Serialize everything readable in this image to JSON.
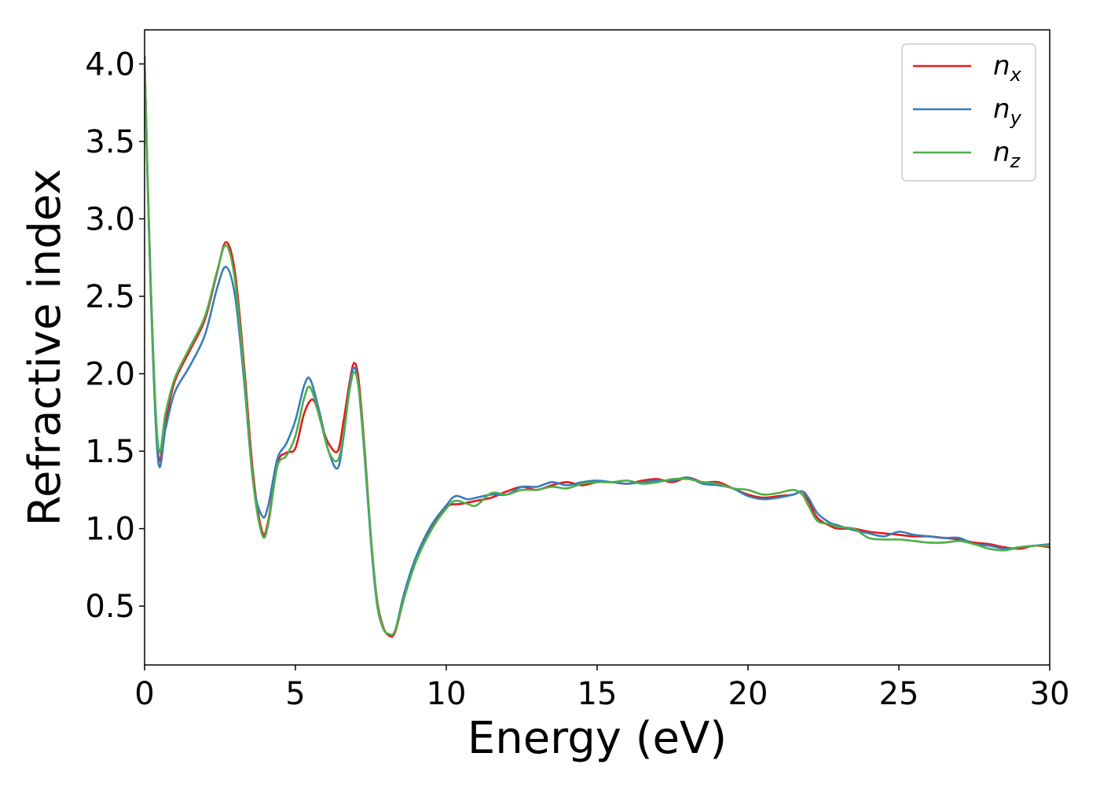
{
  "chart_data": {
    "type": "line",
    "xlabel": "Energy (eV)",
    "ylabel": "Refractive index",
    "xlim": [
      0,
      30
    ],
    "ylim": [
      0.12,
      4.22
    ],
    "xticks": [
      0,
      5,
      10,
      15,
      20,
      25,
      30
    ],
    "xtick_labels": [
      "0",
      "5",
      "10",
      "15",
      "20",
      "25",
      "30"
    ],
    "yticks": [
      0.5,
      1.0,
      1.5,
      2.0,
      2.5,
      3.0,
      3.5,
      4.0
    ],
    "ytick_labels": [
      "0.5",
      "1.0",
      "1.5",
      "2.0",
      "2.5",
      "3.0",
      "3.5",
      "4.0"
    ],
    "grid": false,
    "legend_position": "top-right",
    "series": [
      {
        "name": "n_x",
        "legend_main": "n",
        "legend_sub": "x",
        "color": "#e41a1c",
        "x": [
          0,
          0.2,
          0.45,
          0.7,
          1.0,
          1.5,
          2.0,
          2.4,
          2.7,
          3.0,
          3.3,
          3.6,
          3.9,
          4.1,
          4.4,
          4.7,
          5.0,
          5.3,
          5.6,
          5.9,
          6.1,
          6.4,
          6.6,
          6.8,
          6.95,
          7.1,
          7.3,
          7.5,
          7.7,
          7.9,
          8.1,
          8.3,
          8.6,
          9.0,
          9.5,
          10.0,
          10.5,
          11.0,
          11.5,
          12.0,
          12.5,
          13.0,
          13.5,
          14.0,
          14.5,
          15.0,
          15.5,
          16.0,
          16.5,
          17.0,
          17.5,
          18.0,
          18.5,
          19.0,
          19.5,
          20.0,
          20.5,
          21.0,
          21.5,
          21.8,
          22.0,
          22.3,
          22.7,
          23.0,
          23.5,
          24.0,
          24.5,
          25.0,
          25.5,
          26.0,
          26.5,
          27.0,
          27.5,
          28.0,
          28.5,
          29.0,
          29.5,
          30.0
        ],
        "y": [
          4.05,
          2.6,
          1.48,
          1.7,
          1.95,
          2.15,
          2.35,
          2.65,
          2.85,
          2.65,
          2.05,
          1.35,
          0.98,
          1.05,
          1.42,
          1.49,
          1.52,
          1.75,
          1.83,
          1.65,
          1.55,
          1.5,
          1.7,
          1.95,
          2.07,
          1.95,
          1.5,
          0.95,
          0.55,
          0.37,
          0.31,
          0.33,
          0.55,
          0.8,
          1.0,
          1.14,
          1.16,
          1.18,
          1.2,
          1.24,
          1.27,
          1.25,
          1.28,
          1.3,
          1.28,
          1.3,
          1.3,
          1.29,
          1.31,
          1.32,
          1.3,
          1.33,
          1.3,
          1.3,
          1.26,
          1.22,
          1.2,
          1.21,
          1.22,
          1.24,
          1.18,
          1.07,
          1.02,
          1.0,
          1.0,
          0.98,
          0.97,
          0.96,
          0.95,
          0.95,
          0.94,
          0.93,
          0.91,
          0.9,
          0.88,
          0.87,
          0.89,
          0.88
        ]
      },
      {
        "name": "n_y",
        "legend_main": "n",
        "legend_sub": "y",
        "color": "#377eb8",
        "x": [
          0,
          0.2,
          0.45,
          0.7,
          1.0,
          1.5,
          2.0,
          2.4,
          2.7,
          3.0,
          3.3,
          3.6,
          3.9,
          4.1,
          4.4,
          4.7,
          5.0,
          5.3,
          5.5,
          5.8,
          6.1,
          6.4,
          6.6,
          6.8,
          6.95,
          7.1,
          7.3,
          7.5,
          7.7,
          7.9,
          8.1,
          8.3,
          8.6,
          9.0,
          9.5,
          10.0,
          10.3,
          10.7,
          11.0,
          11.5,
          12.0,
          12.5,
          13.0,
          13.5,
          14.0,
          14.5,
          15.0,
          15.5,
          16.0,
          16.5,
          17.0,
          17.5,
          18.0,
          18.5,
          19.0,
          19.5,
          20.0,
          20.5,
          21.0,
          21.5,
          21.8,
          22.0,
          22.3,
          22.7,
          23.0,
          23.5,
          24.0,
          24.5,
          25.0,
          25.5,
          26.0,
          26.5,
          27.0,
          27.5,
          28.0,
          28.5,
          29.0,
          29.5,
          30.0
        ],
        "y": [
          4.02,
          2.55,
          1.44,
          1.65,
          1.88,
          2.05,
          2.25,
          2.55,
          2.69,
          2.5,
          1.95,
          1.3,
          1.08,
          1.15,
          1.45,
          1.55,
          1.7,
          1.93,
          1.96,
          1.75,
          1.5,
          1.39,
          1.6,
          1.92,
          2.04,
          1.9,
          1.45,
          0.92,
          0.52,
          0.36,
          0.32,
          0.34,
          0.58,
          0.82,
          1.02,
          1.15,
          1.21,
          1.19,
          1.2,
          1.22,
          1.22,
          1.27,
          1.27,
          1.3,
          1.28,
          1.3,
          1.31,
          1.3,
          1.29,
          1.3,
          1.31,
          1.31,
          1.33,
          1.29,
          1.28,
          1.26,
          1.21,
          1.19,
          1.2,
          1.22,
          1.24,
          1.2,
          1.1,
          1.04,
          1.02,
          0.99,
          0.97,
          0.95,
          0.98,
          0.96,
          0.95,
          0.94,
          0.94,
          0.9,
          0.89,
          0.87,
          0.88,
          0.89,
          0.9
        ]
      },
      {
        "name": "n_z",
        "legend_main": "n",
        "legend_sub": "z",
        "color": "#4daf4a",
        "x": [
          0,
          0.2,
          0.45,
          0.7,
          1.0,
          1.5,
          2.0,
          2.4,
          2.7,
          3.0,
          3.3,
          3.6,
          3.9,
          4.1,
          4.4,
          4.7,
          5.0,
          5.3,
          5.5,
          5.8,
          6.1,
          6.4,
          6.6,
          6.8,
          6.95,
          7.1,
          7.3,
          7.5,
          7.7,
          7.9,
          8.1,
          8.3,
          8.6,
          9.0,
          9.5,
          10.0,
          10.3,
          10.7,
          11.0,
          11.5,
          12.0,
          12.5,
          13.0,
          13.5,
          14.0,
          14.5,
          15.0,
          15.5,
          16.0,
          16.5,
          17.0,
          17.5,
          18.0,
          18.5,
          19.0,
          19.5,
          20.0,
          20.5,
          21.0,
          21.5,
          21.8,
          22.0,
          22.3,
          22.7,
          23.0,
          23.5,
          24.0,
          24.5,
          25.0,
          25.5,
          26.0,
          26.5,
          27.0,
          27.5,
          28.0,
          28.5,
          29.0,
          29.5,
          30.0
        ],
        "y": [
          4.0,
          2.6,
          1.53,
          1.75,
          1.97,
          2.17,
          2.37,
          2.66,
          2.83,
          2.6,
          2.0,
          1.3,
          0.96,
          1.03,
          1.4,
          1.47,
          1.6,
          1.85,
          1.91,
          1.72,
          1.5,
          1.44,
          1.62,
          1.9,
          2.01,
          1.9,
          1.48,
          0.95,
          0.54,
          0.36,
          0.32,
          0.34,
          0.55,
          0.79,
          0.99,
          1.13,
          1.18,
          1.16,
          1.15,
          1.23,
          1.22,
          1.25,
          1.25,
          1.27,
          1.26,
          1.29,
          1.3,
          1.3,
          1.31,
          1.29,
          1.3,
          1.32,
          1.32,
          1.3,
          1.29,
          1.26,
          1.25,
          1.22,
          1.23,
          1.25,
          1.22,
          1.15,
          1.05,
          1.03,
          1.01,
          1.0,
          0.94,
          0.93,
          0.93,
          0.92,
          0.91,
          0.91,
          0.92,
          0.9,
          0.87,
          0.86,
          0.88,
          0.89,
          0.89
        ]
      }
    ]
  }
}
